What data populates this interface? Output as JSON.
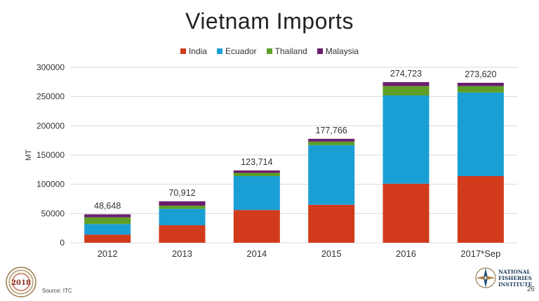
{
  "slide": {
    "title": "Vietnam Imports",
    "source": "Source: ITC",
    "page_number": "26",
    "seal_logo_text": "2018",
    "org_logo_lines": [
      "NATIONAL",
      "FISHERIES",
      "INSTITUTE"
    ]
  },
  "colors": {
    "India": "#d13b1c",
    "Ecuador": "#1a9fd4",
    "Thailand": "#5e9e26",
    "Malaysia": "#6a1e6e",
    "grid": "#d9d9d9",
    "axis_text": "#333333"
  },
  "chart_data": {
    "type": "bar",
    "stacked": true,
    "title": "Vietnam Imports",
    "ylabel": "MT",
    "xlabel": "",
    "ylim": [
      0,
      300000
    ],
    "yticks": [
      0,
      50000,
      100000,
      150000,
      200000,
      250000,
      300000
    ],
    "ytick_labels": [
      "0",
      "50000",
      "100000",
      "150000",
      "200000",
      "250000",
      "300000"
    ],
    "grid": true,
    "legend_position": "top",
    "categories": [
      "2012",
      "2013",
      "2014",
      "2015",
      "2016",
      "2017*Sep"
    ],
    "totals": [
      "48,648",
      "70,912",
      "123,714",
      "177,766",
      "274,723",
      "273,620"
    ],
    "series": [
      {
        "name": "India",
        "values": [
          14000,
          30000,
          56000,
          65000,
          101000,
          114000
        ]
      },
      {
        "name": "Ecuador",
        "values": [
          18000,
          28000,
          58000,
          102000,
          151000,
          143000
        ]
      },
      {
        "name": "Thailand",
        "values": [
          11500,
          5500,
          5500,
          6000,
          16000,
          11000
        ]
      },
      {
        "name": "Malaysia",
        "values": [
          5148,
          7412,
          4214,
          4766,
          6723,
          5620
        ]
      }
    ]
  }
}
